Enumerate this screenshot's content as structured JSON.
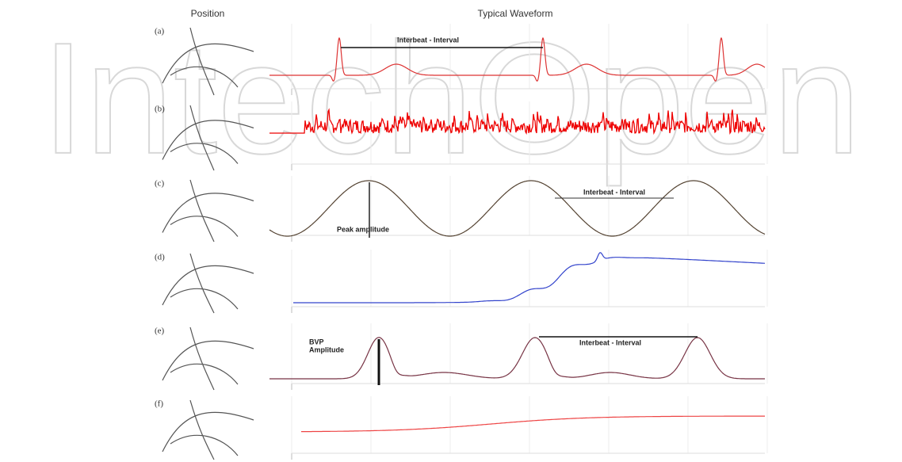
{
  "header": {
    "position": "Position",
    "waveform": "Typical Waveform"
  },
  "watermark": "IntechOpen",
  "panels": [
    {
      "label": "(a)",
      "annotations": [
        "Interbeat - Interval"
      ]
    },
    {
      "label": "(b)",
      "annotations": []
    },
    {
      "label": "(c)",
      "annotations": [
        "Interbeat - Interval",
        "Peak amplitude"
      ]
    },
    {
      "label": "(d)",
      "annotations": []
    },
    {
      "label": "(e)",
      "annotations": [
        "BVP",
        "Amplitude",
        "Interbeat - Interval"
      ]
    },
    {
      "label": "(f)",
      "annotations": []
    }
  ]
}
